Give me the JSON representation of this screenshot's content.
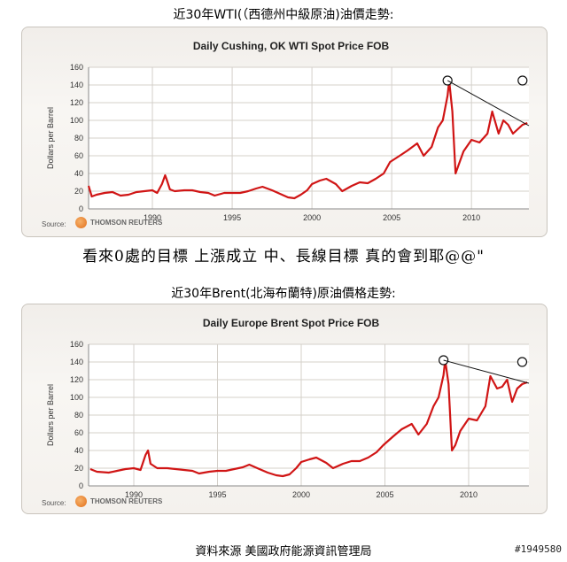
{
  "headings": {
    "wti": "近30年WTI(（西德州中級原油)油價走勢:",
    "brent": "近30年Brent(北海布蘭特)原油價格走勢:",
    "comment": "看來0處的目標 上漲成立 中、長線目標 真的會到耶@@\"",
    "footer": "資料來源 美國政府能源資訊管理局",
    "id_tag": "#1949580"
  },
  "source_label": "Source:",
  "source_name": "THOMSON REUTERS",
  "colors": {
    "line": "#d01515",
    "grid": "#d4d0ca",
    "trend": "#111111"
  },
  "chart_data": [
    {
      "type": "line",
      "title": "Daily Cushing, OK WTI Spot Price FOB",
      "ylabel": "Dollars per Barrel",
      "xlabel": "",
      "ylim": [
        0,
        160
      ],
      "xlim": [
        1986,
        2013.6
      ],
      "yticks": [
        "0",
        "20",
        "40",
        "60",
        "80",
        "100",
        "120",
        "140",
        "160"
      ],
      "xticks": [
        "1990",
        "1995",
        "2000",
        "2005",
        "2010"
      ],
      "grid": true,
      "series": [
        {
          "x": [
            1986.0,
            1986.2,
            1986.5,
            1987.0,
            1987.5,
            1988.0,
            1988.5,
            1989.0,
            1989.5,
            1990.0,
            1990.3,
            1990.6,
            1990.8,
            1990.9,
            1991.1,
            1991.4,
            1992.0,
            1992.5,
            1993.0,
            1993.5,
            1993.9,
            1994.5,
            1995.0,
            1995.5,
            1996.0,
            1996.5,
            1996.9,
            1997.5,
            1998.0,
            1998.5,
            1998.9,
            1999.3,
            1999.7,
            2000.0,
            2000.5,
            2000.9,
            2001.5,
            2001.9,
            2002.5,
            2003.0,
            2003.5,
            2004.0,
            2004.5,
            2004.9,
            2005.5,
            2006.0,
            2006.6,
            2007.0,
            2007.5,
            2007.9,
            2008.2,
            2008.5,
            2008.6,
            2008.8,
            2009.0,
            2009.2,
            2009.5,
            2010.0,
            2010.5,
            2011.0,
            2011.3,
            2011.7,
            2012.0,
            2012.3,
            2012.6,
            2012.9,
            2013.2,
            2013.5
          ],
          "values": [
            26,
            14,
            16,
            18,
            19,
            15,
            16,
            19,
            20,
            21,
            18,
            28,
            38,
            33,
            22,
            20,
            21,
            21,
            19,
            18,
            15,
            18,
            18,
            18,
            20,
            23,
            25,
            21,
            17,
            13,
            12,
            16,
            21,
            28,
            32,
            34,
            28,
            20,
            26,
            30,
            29,
            34,
            40,
            53,
            60,
            66,
            74,
            60,
            70,
            92,
            100,
            128,
            145,
            110,
            40,
            50,
            65,
            78,
            75,
            85,
            110,
            85,
            100,
            95,
            85,
            90,
            95,
            97
          ]
        }
      ],
      "annotations": [
        {
          "type": "circle",
          "x": 2008.5,
          "y": 145
        },
        {
          "type": "circle",
          "x": 2013.2,
          "y": 145
        },
        {
          "type": "trend",
          "x1": 2008.5,
          "y1": 145,
          "x2": 2013.6,
          "y2": 94
        }
      ]
    },
    {
      "type": "line",
      "title": "Daily Europe Brent Spot Price FOB",
      "ylabel": "Dollars per Barrel",
      "xlabel": "",
      "ylim": [
        0,
        160
      ],
      "xlim": [
        1987.3,
        2013.6
      ],
      "yticks": [
        "0",
        "20",
        "40",
        "60",
        "80",
        "100",
        "120",
        "140",
        "160"
      ],
      "xticks": [
        "1990",
        "1995",
        "2000",
        "2005",
        "2010"
      ],
      "grid": true,
      "series": [
        {
          "x": [
            1987.4,
            1987.8,
            1988.5,
            1989.0,
            1989.5,
            1990.0,
            1990.4,
            1990.7,
            1990.85,
            1991.0,
            1991.4,
            1992.0,
            1992.5,
            1993.0,
            1993.5,
            1993.9,
            1994.5,
            1995.0,
            1995.5,
            1996.0,
            1996.5,
            1996.9,
            1997.5,
            1998.0,
            1998.5,
            1998.9,
            1999.3,
            1999.7,
            2000.0,
            2000.5,
            2000.9,
            2001.5,
            2001.9,
            2002.5,
            2003.0,
            2003.5,
            2004.0,
            2004.5,
            2004.9,
            2005.5,
            2006.0,
            2006.6,
            2007.0,
            2007.5,
            2007.9,
            2008.2,
            2008.5,
            2008.6,
            2008.8,
            2009.0,
            2009.2,
            2009.5,
            2010.0,
            2010.5,
            2011.0,
            2011.3,
            2011.7,
            2012.0,
            2012.3,
            2012.6,
            2012.9,
            2013.2,
            2013.5
          ],
          "values": [
            19,
            16,
            15,
            17,
            19,
            20,
            18,
            35,
            40,
            25,
            20,
            20,
            19,
            18,
            17,
            14,
            16,
            17,
            17,
            19,
            21,
            24,
            19,
            15,
            12,
            11,
            13,
            20,
            27,
            30,
            32,
            26,
            20,
            25,
            28,
            28,
            32,
            38,
            46,
            56,
            64,
            70,
            58,
            70,
            90,
            100,
            125,
            142,
            115,
            40,
            46,
            62,
            76,
            74,
            90,
            124,
            110,
            112,
            120,
            95,
            110,
            115,
            117
          ]
        }
      ],
      "annotations": [
        {
          "type": "circle",
          "x": 2008.5,
          "y": 142
        },
        {
          "type": "circle",
          "x": 2013.2,
          "y": 140
        },
        {
          "type": "trend",
          "x1": 2008.5,
          "y1": 142,
          "x2": 2013.6,
          "y2": 116
        }
      ]
    }
  ]
}
